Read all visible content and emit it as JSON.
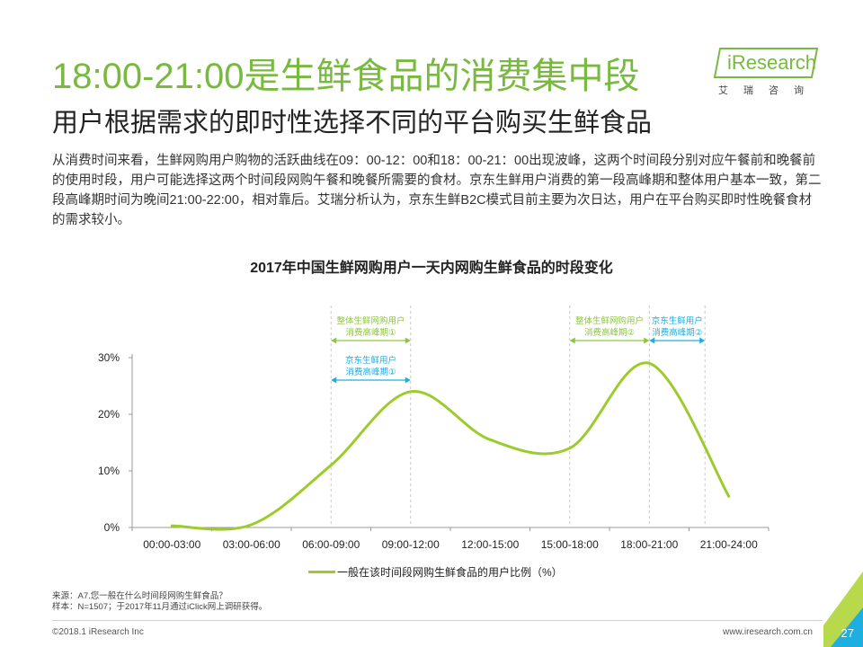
{
  "title": "18:00-21:00是生鲜食品的消费集中段",
  "subtitle": "用户根据需求的即时性选择不同的平台购买生鲜食品",
  "logo": {
    "brand": "iResearch",
    "sub": "艾瑞咨询"
  },
  "body": "从消费时间来看，生鲜网购用户购物的活跃曲线在09：00-12：00和18：00-21：00出现波峰，这两个时间段分别对应午餐前和晚餐前的使用时段，用户可能选择这两个时间段网购午餐和晚餐所需要的食材。京东生鲜用户消费的第一段高峰期和整体用户基本一致，第二段高峰期时间为晚间21:00-22:00，相对靠后。艾瑞分析认为，京东生鲜B2C模式目前主要为次日达，用户在平台购买即时性晚餐食材的需求较小。",
  "colors": {
    "accent": "#7ab940",
    "line": "#9ccc2c",
    "cyan": "#1eaee0",
    "green_label": "#8cc63f"
  },
  "chart_data": {
    "type": "line",
    "title": "2017年中国生鲜网购用户一天内网购生鲜食品的时段变化",
    "categories": [
      "00:00-03:00",
      "03:00-06:00",
      "06:00-09:00",
      "09:00-12:00",
      "12:00-15:00",
      "15:00-18:00",
      "18:00-21:00",
      "21:00-24:00"
    ],
    "series": [
      {
        "name": "一般在该时间段网购生鲜食品的用户比例（%）",
        "values": [
          0.3,
          0.5,
          11,
          24,
          15.5,
          14,
          29,
          5.5
        ]
      }
    ],
    "ylim": [
      0,
      30
    ],
    "yticks": [
      0,
      10,
      20,
      30
    ],
    "ytick_labels": [
      "0%",
      "10%",
      "20%",
      "30%"
    ],
    "grid": false,
    "legend": "bottom",
    "annotations": [
      {
        "line1": "整体生鲜网购用户",
        "line2": "消费高峰期①",
        "x_start": 2.5,
        "x_end": 3.5,
        "color": "#8cc63f",
        "tier": 1
      },
      {
        "line1": "京东生鲜用户",
        "line2": "消费高峰期①",
        "x_start": 2.5,
        "x_end": 3.5,
        "color": "#1eaee0",
        "tier": 2
      },
      {
        "line1": "整体生鲜网购用户",
        "line2": "消费高峰期②",
        "x_start": 5.5,
        "x_end": 6.5,
        "color": "#8cc63f",
        "tier": 1
      },
      {
        "line1": "京东生鲜用户",
        "line2": "消费高峰期②",
        "x_start": 6.5,
        "x_end": 7.2,
        "color": "#1eaee0",
        "tier": 1
      }
    ]
  },
  "source": {
    "line1": "来源：A7.您一般在什么时间段网购生鲜食品？",
    "line2": "样本：N=1507；于2017年11月通过iClick网上调研获得。"
  },
  "footer": {
    "copyright": "©2018.1 iResearch Inc",
    "url": "www.iresearch.com.cn",
    "page": "27"
  }
}
